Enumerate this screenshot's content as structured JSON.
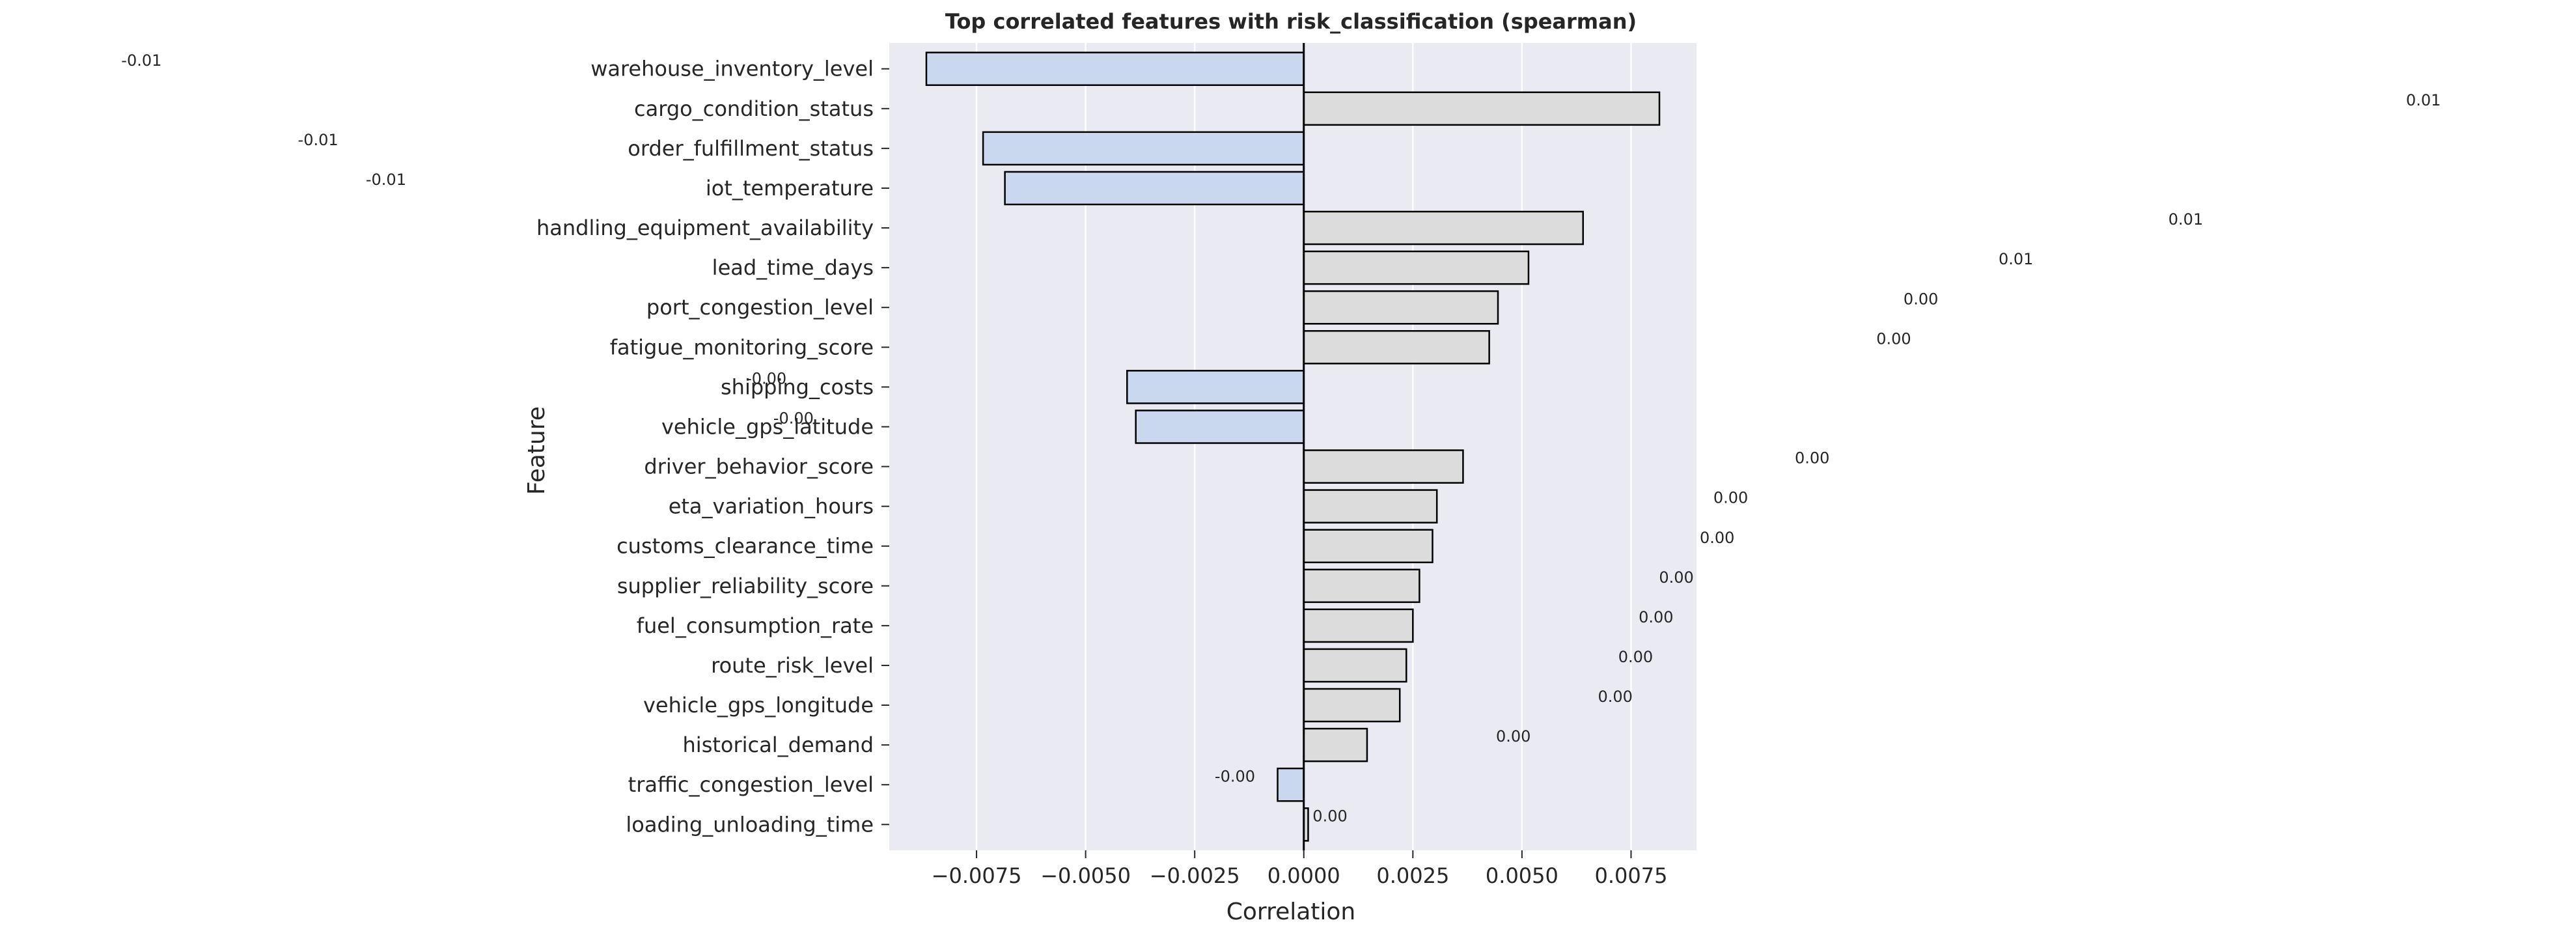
{
  "chart_data": {
    "type": "bar",
    "orientation": "horizontal",
    "title": "Top correlated features with risk_classification (spearman)",
    "xlabel": "Correlation",
    "ylabel": "Feature",
    "xlim": [
      -0.0095,
      0.009
    ],
    "xticks": [
      -0.0075,
      -0.005,
      -0.0025,
      0.0,
      0.0025,
      0.005,
      0.0075
    ],
    "xtick_labels": [
      "−0.0075",
      "−0.0050",
      "−0.0025",
      "0.0000",
      "0.0025",
      "0.0050",
      "0.0075"
    ],
    "grid": true,
    "negative_color": "#c9d7ef",
    "positive_color": "#dcdcdc",
    "edge_color": "#000000",
    "plot_background": "#eaeaf2",
    "categories": [
      "warehouse_inventory_level",
      "cargo_condition_status",
      "order_fulfillment_status",
      "iot_temperature",
      "handling_equipment_availability",
      "lead_time_days",
      "port_congestion_level",
      "fatigue_monitoring_score",
      "shipping_costs",
      "vehicle_gps_latitude",
      "driver_behavior_score",
      "eta_variation_hours",
      "customs_clearance_time",
      "supplier_reliability_score",
      "fuel_consumption_rate",
      "route_risk_level",
      "vehicle_gps_longitude",
      "historical_demand",
      "traffic_congestion_level",
      "loading_unloading_time"
    ],
    "values": [
      -0.00865,
      0.00815,
      -0.00735,
      -0.00685,
      0.0064,
      0.00515,
      0.00445,
      0.00425,
      -0.00405,
      -0.00385,
      0.00365,
      0.00305,
      0.00295,
      0.00265,
      0.0025,
      0.00235,
      0.0022,
      0.00145,
      -0.0006,
      0.0001
    ],
    "value_labels": [
      "-0.01",
      "0.01",
      "-0.01",
      "-0.01",
      "0.01",
      "0.01",
      "0.00",
      "0.00",
      "-0.00",
      "-0.00",
      "0.00",
      "0.00",
      "0.00",
      "0.00",
      "0.00",
      "0.00",
      "0.00",
      "0.00",
      "-0.00",
      "0.00"
    ]
  }
}
